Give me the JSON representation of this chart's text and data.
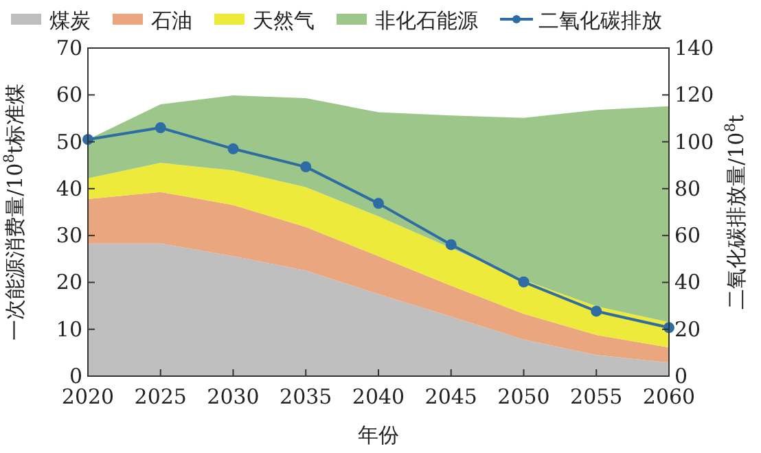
{
  "chart_data": {
    "type": "area",
    "stacked": true,
    "xlabel": "年份",
    "ylabel": "一次能源消费量/10$^{8}$t标准煤",
    "y2label": "二氧化碳排放量/10$^{8}$t",
    "x": [
      2020,
      2025,
      2030,
      2035,
      2040,
      2045,
      2050,
      2055,
      2060
    ],
    "xlim": [
      2020,
      2060
    ],
    "xticks": [
      2020,
      2025,
      2030,
      2035,
      2040,
      2045,
      2050,
      2055,
      2060
    ],
    "ylim": [
      0,
      70
    ],
    "yticks": [
      0,
      10,
      20,
      30,
      40,
      50,
      60,
      70
    ],
    "y2lim": [
      0,
      140
    ],
    "y2ticks": [
      0,
      20,
      40,
      60,
      80,
      100,
      120,
      140
    ],
    "legend": "top",
    "grid": false,
    "series": [
      {
        "name": "煤炭",
        "color": "#bfbfbf",
        "values": [
          28.3,
          28.3,
          25.6,
          22.5,
          17.5,
          12.7,
          7.8,
          4.5,
          2.9
        ]
      },
      {
        "name": "石油",
        "color": "#eaa77f",
        "values": [
          9.5,
          11,
          10.9,
          9.3,
          8.1,
          6.6,
          5.5,
          4.3,
          3.2
        ]
      },
      {
        "name": "天然气",
        "color": "#eeea3c",
        "values": [
          4.4,
          6.2,
          7.4,
          8.5,
          8.5,
          8,
          7.2,
          6.1,
          5.4
        ]
      },
      {
        "name": "非化石能源",
        "color": "#9dc78a",
        "values": [
          8.3,
          12.5,
          16,
          19,
          22.2,
          28.3,
          34.6,
          41.9,
          46.1
        ]
      },
      {
        "name": "二氧化碳排放",
        "type": "line",
        "axis": "y2",
        "marker": "circle",
        "line_style": "solid",
        "color": "#2e6da4",
        "values": [
          101,
          106,
          97,
          89.3,
          73.7,
          56.1,
          40.2,
          27.7,
          20.7
        ]
      }
    ]
  }
}
